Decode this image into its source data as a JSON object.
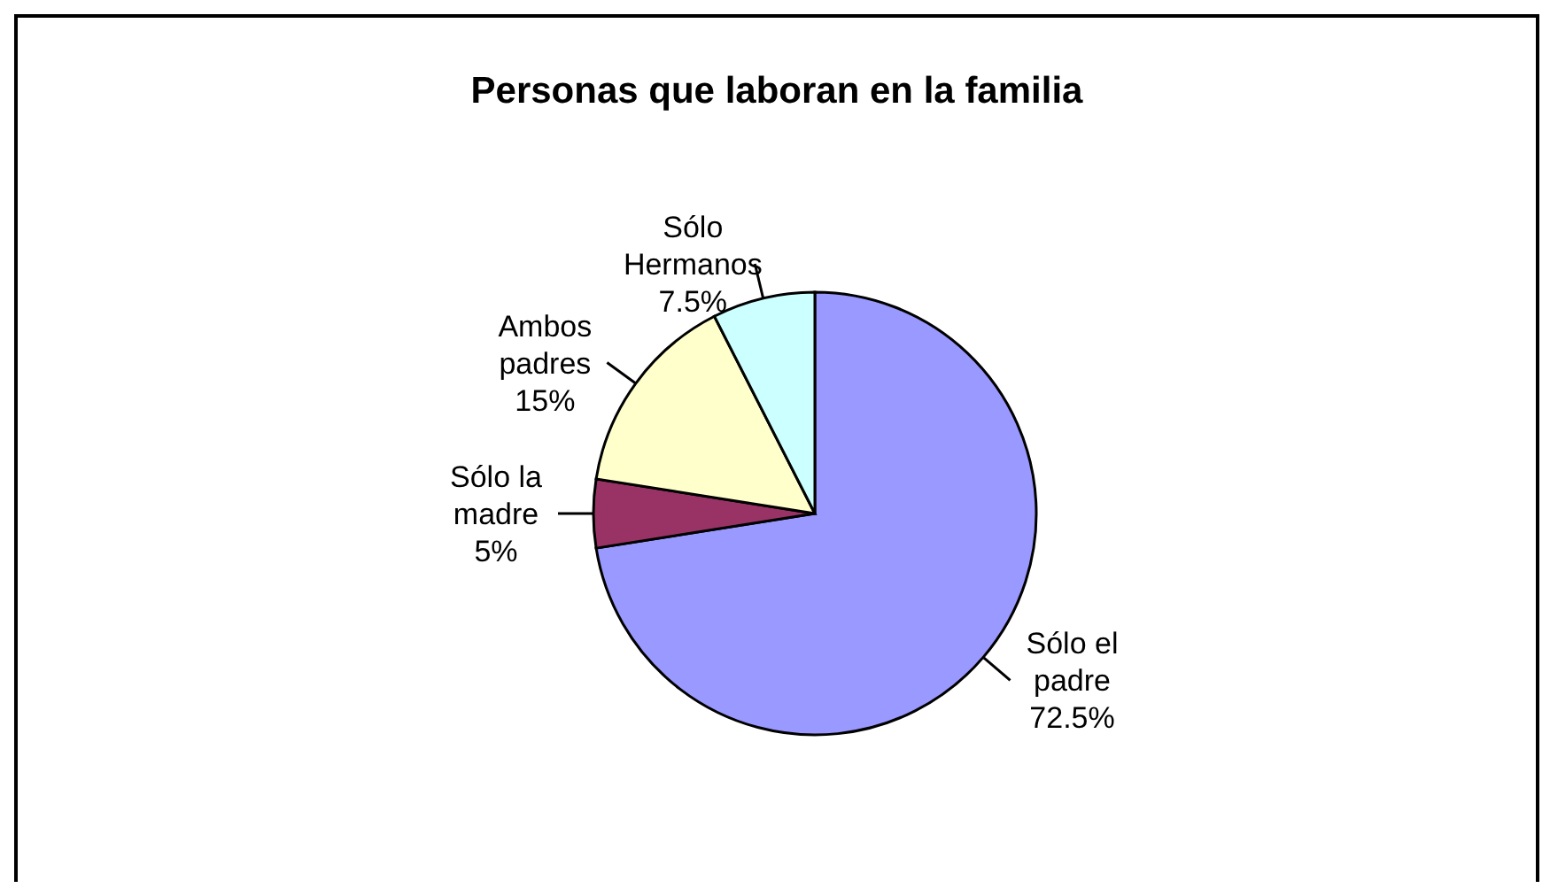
{
  "chart_data": {
    "type": "pie",
    "title": "Personas que laboran en la familia",
    "categories": [
      "Sólo el padre",
      "Sólo la madre",
      "Ambos padres",
      "Sólo Hermanos"
    ],
    "values": [
      72.5,
      5,
      15,
      7.5
    ],
    "colors": [
      "#9999ff",
      "#993366",
      "#ffffcc",
      "#ccffff"
    ],
    "value_labels": [
      "72.5%",
      "5%",
      "15%",
      "7.5%"
    ],
    "legend": false
  }
}
